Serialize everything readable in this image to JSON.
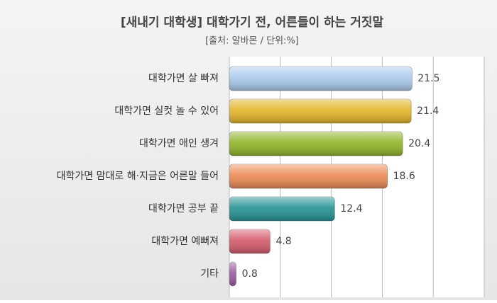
{
  "chart_data": {
    "type": "hbar",
    "title": "[새내기 대학생] 대학가기 전, 어른들이 하는 거짓말",
    "subtitle": "[출처: 알바몬 / 단위:%]",
    "categories": [
      "대학가면 살 빠져",
      "대학가면 실컷 놀 수 있어",
      "대학가면 애인 생겨",
      "대학가면 맘대로 해·지금은 어른말 들어",
      "대학가면 공부 끝",
      "대학가면 예뻐져",
      "기타"
    ],
    "values": [
      21.5,
      21.4,
      20.4,
      18.6,
      12.4,
      4.8,
      0.8
    ],
    "colors": [
      "#a9c9ec",
      "#e2b424",
      "#8eb424",
      "#ec8a52",
      "#239393",
      "#d4596a",
      "#9a5aa0"
    ],
    "xlim": [
      0,
      30
    ],
    "xticks": [
      0,
      6,
      12,
      18,
      24,
      30
    ],
    "grid": true
  }
}
